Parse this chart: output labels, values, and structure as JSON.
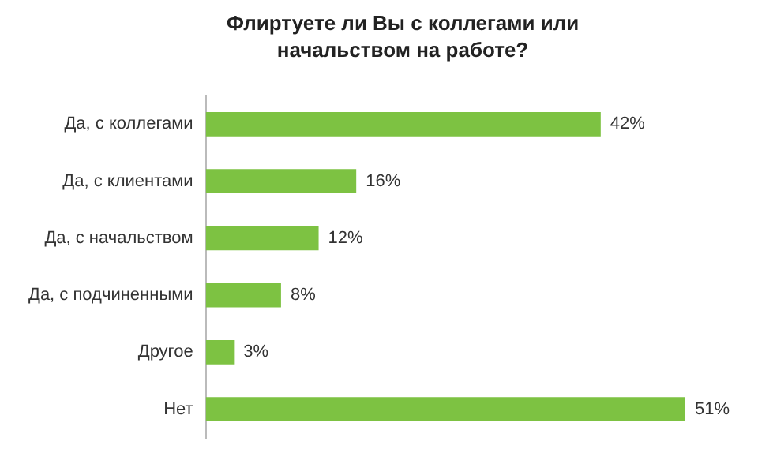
{
  "chart_data": {
    "type": "bar",
    "orientation": "horizontal",
    "title": "Флиртуете ли Вы с коллегами или начальством на работе?",
    "categories": [
      "Да, с коллегами",
      "Да, с клиентами",
      "Да, с начальством",
      "Да, с подчиненными",
      "Другое",
      "Нет"
    ],
    "values": [
      42,
      16,
      12,
      8,
      3,
      51
    ],
    "color": "#7dc242",
    "value_labels": [
      "42%",
      "16%",
      "12%",
      "8%",
      "3%",
      "51%"
    ],
    "grid": false,
    "legend": false
  }
}
